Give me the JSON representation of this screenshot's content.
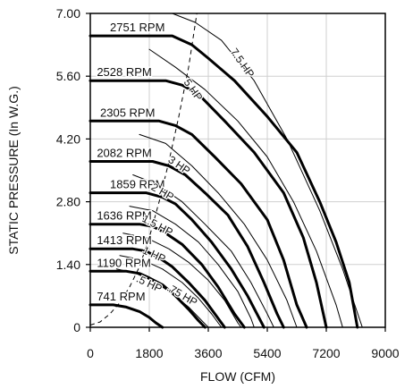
{
  "chart_data": {
    "type": "line",
    "xlabel": "FLOW (CFM)",
    "ylabel": "STATIC PRESSURE (In W.G.)",
    "xlim": [
      0,
      9000
    ],
    "ylim": [
      0,
      7
    ],
    "x_ticks": [
      "0",
      "1800",
      "3600",
      "5400",
      "7200",
      "9000"
    ],
    "y_ticks": [
      "0",
      "1.40",
      "2.80",
      "4.20",
      "5.60",
      "7.00"
    ],
    "series": [
      {
        "name": "2751 RPM",
        "kind": "rpm",
        "points": [
          [
            0,
            6.5
          ],
          [
            2500,
            6.5
          ],
          [
            3100,
            6.3
          ],
          [
            3600,
            6.0
          ],
          [
            4400,
            5.5
          ],
          [
            5400,
            4.7
          ],
          [
            6300,
            3.9
          ],
          [
            7000,
            2.8
          ],
          [
            7500,
            1.9
          ],
          [
            7900,
            1.0
          ],
          [
            8150,
            0.0
          ]
        ]
      },
      {
        "name": "2528 RPM",
        "kind": "rpm",
        "points": [
          [
            0,
            5.5
          ],
          [
            2300,
            5.5
          ],
          [
            2800,
            5.4
          ],
          [
            3300,
            5.2
          ],
          [
            4100,
            4.6
          ],
          [
            5000,
            3.9
          ],
          [
            5900,
            3.0
          ],
          [
            6500,
            2.0
          ],
          [
            6900,
            1.0
          ],
          [
            7200,
            0.0
          ]
        ]
      },
      {
        "name": "2305 RPM",
        "kind": "rpm",
        "points": [
          [
            0,
            4.6
          ],
          [
            2100,
            4.6
          ],
          [
            2600,
            4.5
          ],
          [
            3100,
            4.3
          ],
          [
            3800,
            3.8
          ],
          [
            4600,
            3.2
          ],
          [
            5400,
            2.4
          ],
          [
            5900,
            1.5
          ],
          [
            6300,
            0.5
          ],
          [
            6600,
            0.0
          ]
        ]
      },
      {
        "name": "2082 RPM",
        "kind": "rpm",
        "points": [
          [
            0,
            3.7
          ],
          [
            1900,
            3.7
          ],
          [
            2400,
            3.6
          ],
          [
            2900,
            3.4
          ],
          [
            3500,
            3.0
          ],
          [
            4200,
            2.5
          ],
          [
            4800,
            1.8
          ],
          [
            5300,
            1.0
          ],
          [
            5700,
            0.3
          ],
          [
            5900,
            0.0
          ]
        ]
      },
      {
        "name": "1859 RPM",
        "kind": "rpm",
        "points": [
          [
            0,
            3.0
          ],
          [
            1700,
            3.0
          ],
          [
            2200,
            2.9
          ],
          [
            2600,
            2.75
          ],
          [
            3100,
            2.4
          ],
          [
            3700,
            1.9
          ],
          [
            4300,
            1.3
          ],
          [
            4800,
            0.7
          ],
          [
            5300,
            0.0
          ]
        ]
      },
      {
        "name": "1636 RPM",
        "kind": "rpm",
        "points": [
          [
            0,
            2.3
          ],
          [
            1500,
            2.3
          ],
          [
            1900,
            2.25
          ],
          [
            2300,
            2.1
          ],
          [
            2800,
            1.85
          ],
          [
            3400,
            1.4
          ],
          [
            3900,
            0.9
          ],
          [
            4400,
            0.3
          ],
          [
            4700,
            0.0
          ]
        ]
      },
      {
        "name": "1413 RPM",
        "kind": "rpm",
        "points": [
          [
            0,
            1.75
          ],
          [
            1300,
            1.75
          ],
          [
            1700,
            1.7
          ],
          [
            2100,
            1.55
          ],
          [
            2500,
            1.35
          ],
          [
            3000,
            1.0
          ],
          [
            3500,
            0.6
          ],
          [
            3900,
            0.2
          ],
          [
            4100,
            0.0
          ]
        ]
      },
      {
        "name": "1190 RPM",
        "kind": "rpm",
        "points": [
          [
            0,
            1.25
          ],
          [
            1100,
            1.25
          ],
          [
            1500,
            1.2
          ],
          [
            1800,
            1.1
          ],
          [
            2200,
            0.95
          ],
          [
            2600,
            0.7
          ],
          [
            3000,
            0.4
          ],
          [
            3300,
            0.15
          ],
          [
            3500,
            0.0
          ]
        ]
      },
      {
        "name": "741 RPM",
        "kind": "rpm",
        "points": [
          [
            0,
            0.5
          ],
          [
            700,
            0.5
          ],
          [
            1100,
            0.45
          ],
          [
            1500,
            0.35
          ],
          [
            1800,
            0.22
          ],
          [
            2000,
            0.1
          ],
          [
            2200,
            0.0
          ]
        ]
      },
      {
        "name": "7.5 HP",
        "kind": "hp",
        "points": [
          [
            2500,
            7.0
          ],
          [
            3200,
            6.8
          ],
          [
            4000,
            6.4
          ],
          [
            5000,
            5.5
          ],
          [
            6000,
            4.2
          ],
          [
            7000,
            2.6
          ],
          [
            7700,
            1.3
          ],
          [
            8300,
            0.0
          ]
        ]
      },
      {
        "name": "5 HP",
        "kind": "hp",
        "points": [
          [
            1800,
            6.2
          ],
          [
            2600,
            5.8
          ],
          [
            3500,
            5.3
          ],
          [
            4500,
            4.6
          ],
          [
            5400,
            3.8
          ],
          [
            6200,
            2.8
          ],
          [
            6900,
            1.7
          ],
          [
            7500,
            0.5
          ],
          [
            7700,
            0.0
          ]
        ]
      },
      {
        "name": "3 HP",
        "kind": "hp",
        "points": [
          [
            1500,
            4.3
          ],
          [
            2300,
            4.1
          ],
          [
            3100,
            3.6
          ],
          [
            3900,
            3.0
          ],
          [
            4700,
            2.3
          ],
          [
            5400,
            1.5
          ],
          [
            6000,
            0.6
          ],
          [
            6300,
            0.0
          ]
        ]
      },
      {
        "name": "2 HP",
        "kind": "hp",
        "points": [
          [
            1300,
            3.4
          ],
          [
            2000,
            3.2
          ],
          [
            2800,
            2.8
          ],
          [
            3500,
            2.3
          ],
          [
            4300,
            1.7
          ],
          [
            4900,
            1.0
          ],
          [
            5400,
            0.3
          ],
          [
            5600,
            0.0
          ]
        ]
      },
      {
        "name": "1.5 HP",
        "kind": "hp",
        "points": [
          [
            1200,
            2.7
          ],
          [
            1900,
            2.6
          ],
          [
            2600,
            2.3
          ],
          [
            3300,
            1.9
          ],
          [
            3900,
            1.4
          ],
          [
            4500,
            0.8
          ],
          [
            4900,
            0.2
          ],
          [
            5000,
            0.0
          ]
        ]
      },
      {
        "name": "1 HP",
        "kind": "hp",
        "points": [
          [
            1000,
            2.1
          ],
          [
            1700,
            2.0
          ],
          [
            2400,
            1.75
          ],
          [
            3000,
            1.45
          ],
          [
            3600,
            1.05
          ],
          [
            4100,
            0.6
          ],
          [
            4500,
            0.1
          ],
          [
            4600,
            0.0
          ]
        ]
      },
      {
        "name": ".75 HP",
        "kind": "hp",
        "points": [
          [
            900,
            1.6
          ],
          [
            1600,
            1.5
          ],
          [
            2200,
            1.3
          ],
          [
            2800,
            1.0
          ],
          [
            3300,
            0.65
          ],
          [
            3700,
            0.3
          ],
          [
            4000,
            0.0
          ]
        ]
      },
      {
        "name": ".5 HP",
        "kind": "hp",
        "points": [
          [
            800,
            1.3
          ],
          [
            1400,
            1.2
          ],
          [
            2000,
            1.0
          ],
          [
            2500,
            0.75
          ],
          [
            3000,
            0.45
          ],
          [
            3400,
            0.15
          ],
          [
            3600,
            0.0
          ]
        ]
      }
    ],
    "dashed_curve": [
      [
        0,
        0.05
      ],
      [
        300,
        0.12
      ],
      [
        600,
        0.3
      ],
      [
        900,
        0.55
      ],
      [
        1200,
        0.9
      ],
      [
        1500,
        1.35
      ],
      [
        1800,
        2.0
      ],
      [
        2100,
        2.8
      ],
      [
        2400,
        3.7
      ],
      [
        2700,
        4.7
      ],
      [
        3000,
        5.8
      ],
      [
        3250,
        7.0
      ]
    ],
    "rpm_labels": [
      {
        "series": "2751 RPM",
        "text": "2751 RPM",
        "at": [
          600,
          6.6
        ]
      },
      {
        "series": "2528 RPM",
        "text": "2528 RPM",
        "at": [
          200,
          5.6
        ]
      },
      {
        "series": "2305 RPM",
        "text": "2305 RPM",
        "at": [
          300,
          4.7
        ]
      },
      {
        "series": "2082 RPM",
        "text": "2082 RPM",
        "at": [
          200,
          3.8
        ]
      },
      {
        "series": "1859 RPM",
        "text": "1859 RPM",
        "at": [
          600,
          3.1
        ]
      },
      {
        "series": "1636 RPM",
        "text": "1636 RPM",
        "at": [
          200,
          2.4
        ]
      },
      {
        "series": "1413 RPM",
        "text": "1413 RPM",
        "at": [
          200,
          1.85
        ]
      },
      {
        "series": "1190 RPM",
        "text": "1190 RPM",
        "at": [
          200,
          1.35
        ]
      },
      {
        "series": "741 RPM",
        "text": "741 RPM",
        "at": [
          200,
          0.6
        ]
      }
    ],
    "hp_labels": [
      {
        "text": "7.5 HP",
        "at": [
          4550,
          5.85
        ],
        "angle": 55
      },
      {
        "text": "5 HP",
        "at": [
          3050,
          5.25
        ],
        "angle": 55
      },
      {
        "text": "3 HP",
        "at": [
          2650,
          3.55
        ],
        "angle": 35
      },
      {
        "text": "2 HP",
        "at": [
          2150,
          2.95
        ],
        "angle": 30
      },
      {
        "text": "1.5 HP",
        "at": [
          2000,
          2.2
        ],
        "angle": 28
      },
      {
        "text": "1 HP",
        "at": [
          1900,
          1.55
        ],
        "angle": 25
      },
      {
        "text": ".75 HP",
        "at": [
          2750,
          0.65
        ],
        "angle": 30
      },
      {
        "text": ".5 HP",
        "at": [
          1750,
          0.9
        ],
        "angle": 25
      }
    ]
  }
}
